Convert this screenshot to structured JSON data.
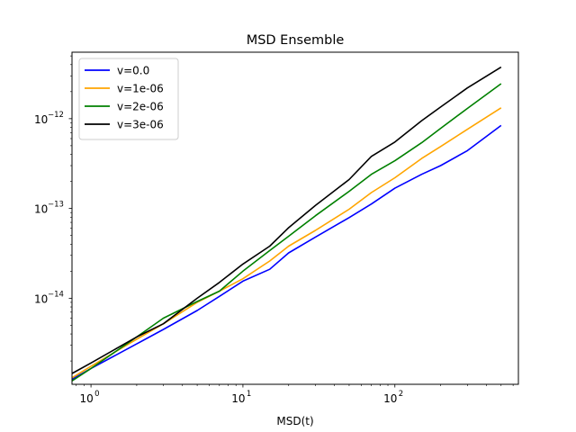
{
  "chart_data": {
    "type": "line",
    "title": "MSD Ensemble",
    "xlabel": "MSD(t)",
    "ylabel": "",
    "xscale": "log",
    "yscale": "log",
    "xlim": [
      0.75,
      650
    ],
    "ylim": [
      1.1e-15,
      5.5e-12
    ],
    "grid": false,
    "legend_position": "upper-left",
    "x_ticks": [
      {
        "value": 1,
        "base": "10",
        "exp": "0"
      },
      {
        "value": 10,
        "base": "10",
        "exp": "1"
      },
      {
        "value": 100,
        "base": "10",
        "exp": "2"
      }
    ],
    "y_ticks": [
      {
        "value": 1e-14,
        "base": "10",
        "exp": "−14"
      },
      {
        "value": 1e-13,
        "base": "10",
        "exp": "−13"
      },
      {
        "value": 1e-12,
        "base": "10",
        "exp": "−12"
      }
    ],
    "x": [
      0.75,
      1,
      2,
      3,
      5,
      7,
      10,
      15,
      20,
      30,
      50,
      70,
      100,
      150,
      200,
      300,
      500
    ],
    "series": [
      {
        "name": "v=0.0",
        "color": "#0000ff",
        "values": [
          1.25e-15,
          1.65e-15,
          3.1e-15,
          4.5e-15,
          7.3e-15,
          1.05e-14,
          1.55e-14,
          2.1e-14,
          3.2e-14,
          4.8e-14,
          7.9e-14,
          1.12e-13,
          1.68e-13,
          2.4e-13,
          3e-13,
          4.4e-13,
          8.4e-13
        ]
      },
      {
        "name": "v=1e-06",
        "color": "#ffa500",
        "values": [
          1.3e-15,
          1.75e-15,
          3.5e-15,
          5.2e-15,
          9e-15,
          1.2e-14,
          1.65e-14,
          2.6e-14,
          3.8e-14,
          5.7e-14,
          9.8e-14,
          1.5e-13,
          2.2e-13,
          3.6e-13,
          4.9e-13,
          7.6e-13,
          1.32e-12
        ]
      },
      {
        "name": "v=2e-06",
        "color": "#008000",
        "values": [
          1.2e-15,
          1.65e-15,
          3.7e-15,
          6e-15,
          9.2e-15,
          1.2e-14,
          2e-14,
          3.4e-14,
          4.9e-14,
          8.3e-14,
          1.55e-13,
          2.4e-13,
          3.4e-13,
          5.4e-13,
          7.8e-13,
          1.3e-12,
          2.45e-12
        ]
      },
      {
        "name": "v=3e-06",
        "color": "#000000",
        "values": [
          1.45e-15,
          1.9e-15,
          3.7e-15,
          5.2e-15,
          1e-14,
          1.5e-14,
          2.4e-14,
          3.8e-14,
          6.1e-14,
          1.08e-13,
          2.1e-13,
          3.8e-13,
          5.5e-13,
          9.5e-13,
          1.35e-12,
          2.2e-12,
          3.75e-12
        ]
      }
    ]
  }
}
